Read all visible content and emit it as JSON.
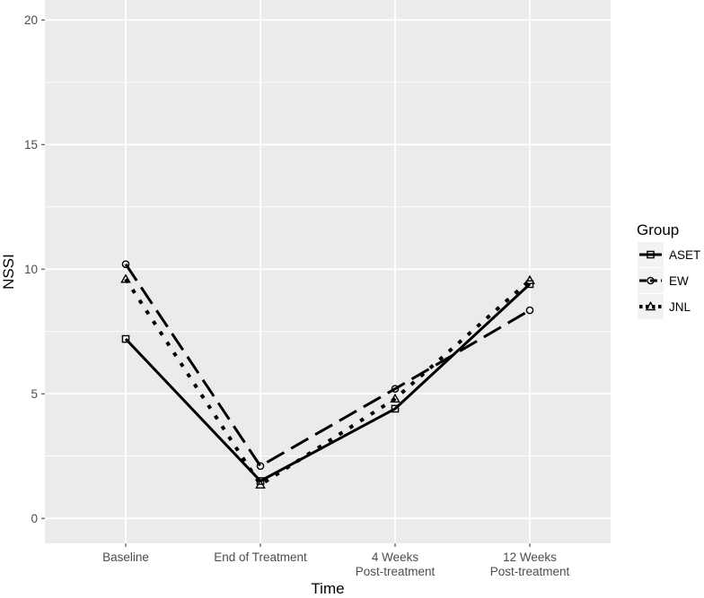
{
  "chart_data": {
    "type": "line",
    "categories": [
      "Baseline",
      "End of Treatment",
      "4 Weeks\nPost-treatment",
      "12 Weeks\nPost-treatment"
    ],
    "series": [
      {
        "name": "ASET",
        "values": [
          7.2,
          1.5,
          4.4,
          9.4
        ],
        "dash": "solid",
        "marker": "square"
      },
      {
        "name": "EW",
        "values": [
          10.2,
          2.1,
          5.2,
          8.35
        ],
        "dash": "dashed",
        "marker": "circle"
      },
      {
        "name": "JNL",
        "values": [
          9.6,
          1.35,
          4.8,
          9.55
        ],
        "dash": "dotted",
        "marker": "triangle"
      }
    ],
    "xlabel": "Time",
    "ylabel": "NSSI",
    "ylim": [
      -1,
      20.8
    ],
    "yticks": [
      0,
      5,
      10,
      15,
      20
    ],
    "grid": true,
    "legend": {
      "title": "Group",
      "position": "right"
    },
    "colors": {
      "panel": "#ebebeb",
      "grid": "#ffffff",
      "line": "#000000",
      "text": "#4d4d4d"
    }
  }
}
